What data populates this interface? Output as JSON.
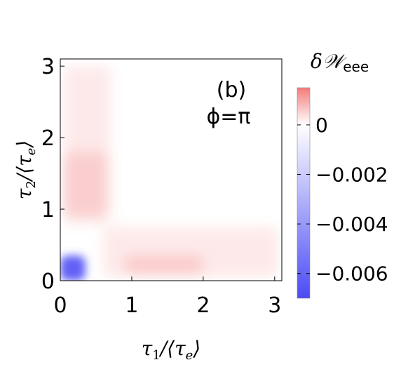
{
  "chart_data": {
    "type": "heatmap",
    "panel_label": "(b)",
    "parameter_label": "ϕ=π",
    "xlabel": {
      "main": "τ",
      "sub": "1",
      "rest": "/⟨τ",
      "sub2": "e",
      "close": "⟩"
    },
    "ylabel": {
      "main": "τ",
      "sub": "2",
      "rest": "/⟨τ",
      "sub2": "e",
      "close": "⟩"
    },
    "xlim": [
      0,
      3.1
    ],
    "ylim": [
      0,
      3.1
    ],
    "x_ticks": [
      0,
      1,
      2,
      3
    ],
    "x_tick_labels": [
      "0",
      "1",
      "2",
      "3"
    ],
    "y_ticks": [
      0,
      1,
      2,
      3
    ],
    "y_tick_labels": [
      "0",
      "1",
      "2",
      "3"
    ],
    "colorbar": {
      "title_main": "δ𝒲",
      "title_sub": "eee",
      "range": [
        -0.007,
        0.0015
      ],
      "ticks": [
        0,
        -0.002,
        -0.004,
        -0.006
      ],
      "tick_labels": [
        "0",
        "−0.002",
        "−0.004",
        "−0.006"
      ],
      "low_color": "#4b4bf5",
      "mid_color": "#ffffff",
      "high_color": "#f47a7a"
    },
    "regions": [
      {
        "name": "positive-vertical-band",
        "x": [
          0.05,
          0.7
        ],
        "y": [
          0.8,
          3.0
        ],
        "value": 0.0006
      },
      {
        "name": "positive-vertical-peak",
        "x": [
          0.05,
          0.65
        ],
        "y": [
          0.9,
          1.8
        ],
        "value": 0.0009
      },
      {
        "name": "positive-horizontal-band",
        "x": [
          0.6,
          3.05
        ],
        "y": [
          0.05,
          0.75
        ],
        "value": 0.0006
      },
      {
        "name": "positive-horizontal-peak",
        "x": [
          0.9,
          2.0
        ],
        "y": [
          0.1,
          0.35
        ],
        "value": 0.001
      },
      {
        "name": "negative-corner-spot",
        "x": [
          0.0,
          0.35
        ],
        "y": [
          0.0,
          0.35
        ],
        "value": -0.0065
      }
    ]
  }
}
